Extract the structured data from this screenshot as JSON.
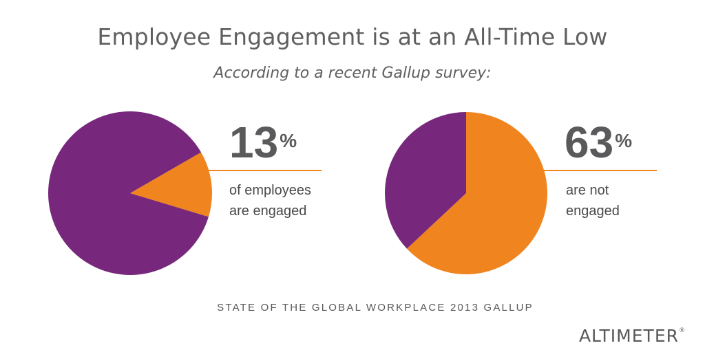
{
  "header": {
    "title": "Employee Engagement is at an All-Time Low",
    "subtitle": "According to a recent Gallup survey:"
  },
  "stats": [
    {
      "value": "13",
      "unit": "%",
      "label_line1": "of employees",
      "label_line2": "are engaged"
    },
    {
      "value": "63",
      "unit": "%",
      "label_line1": "are not",
      "label_line2": "engaged"
    }
  ],
  "footer": {
    "source": "STATE OF THE GLOBAL WORKPLACE 2013 GALLUP",
    "logo": "ALTIMETER",
    "logo_mark": "®"
  },
  "colors": {
    "purple": "#77287c",
    "orange": "#f0841f",
    "text": "#58585a"
  },
  "chart_data": [
    {
      "type": "pie",
      "values": [
        13,
        87
      ],
      "colors": [
        "#f0841f",
        "#77287c"
      ],
      "start_angle_deg": 60,
      "highlight_label": "13%"
    },
    {
      "type": "pie",
      "values": [
        63,
        37
      ],
      "colors": [
        "#f0841f",
        "#77287c"
      ],
      "start_angle_deg": 0,
      "highlight_label": "63%"
    }
  ]
}
